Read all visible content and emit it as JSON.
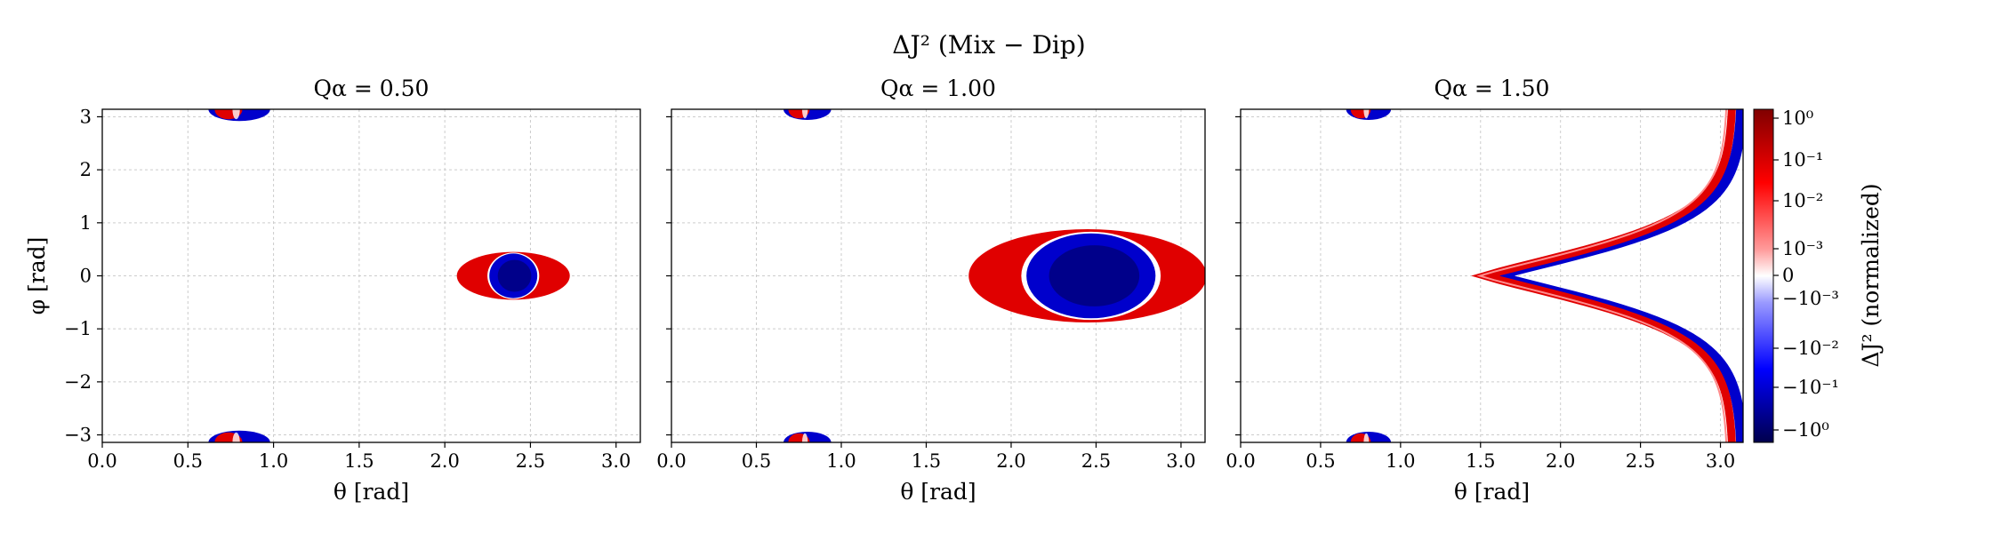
{
  "figure": {
    "suptitle": "ΔJ² (Mix − Dip)"
  },
  "chart_data": [
    {
      "type": "heatmap",
      "title": "Qα = 0.50",
      "xlabel": "θ [rad]",
      "ylabel": "φ [rad]",
      "xlim": [
        0.0,
        3.14159
      ],
      "ylim": [
        -3.14159,
        3.14159
      ],
      "xticks": [
        "0.0",
        "0.5",
        "1.0",
        "1.5",
        "2.0",
        "2.5",
        "3.0"
      ],
      "yticks": [
        "−3",
        "−2",
        "−1",
        "0",
        "1",
        "2",
        "3"
      ],
      "grid": true,
      "regions": [
        {
          "kind": "red-ring-blue-core",
          "theta_center": 2.4,
          "phi_center": 0.0,
          "theta_halfwidth": 0.33,
          "phi_halfwidth": 0.45,
          "core_theta_center": 2.4,
          "core_theta_halfwidth": 0.14,
          "core_phi_halfwidth": 0.42
        },
        {
          "kind": "edge-blob",
          "theta_center": 0.8,
          "phi_center": 3.14,
          "theta_halfwidth": 0.18,
          "phi_halfwidth": 0.22
        },
        {
          "kind": "edge-blob",
          "theta_center": 0.8,
          "phi_center": -3.14,
          "theta_halfwidth": 0.18,
          "phi_halfwidth": 0.22
        }
      ]
    },
    {
      "type": "heatmap",
      "title": "Qα = 1.00",
      "xlabel": "θ [rad]",
      "ylabel": "",
      "xlim": [
        0.0,
        3.14159
      ],
      "ylim": [
        -3.14159,
        3.14159
      ],
      "xticks": [
        "0.0",
        "0.5",
        "1.0",
        "1.5",
        "2.0",
        "2.5",
        "3.0"
      ],
      "yticks": [],
      "grid": true,
      "regions": [
        {
          "kind": "red-ring-blue-core",
          "theta_center": 2.45,
          "phi_center": 0.0,
          "theta_halfwidth": 0.7,
          "phi_halfwidth": 0.88,
          "core_theta_center": 2.47,
          "core_theta_halfwidth": 0.38,
          "core_phi_halfwidth": 0.8
        },
        {
          "kind": "edge-blob",
          "theta_center": 0.8,
          "phi_center": 3.14,
          "theta_halfwidth": 0.14,
          "phi_halfwidth": 0.2
        },
        {
          "kind": "edge-blob",
          "theta_center": 0.8,
          "phi_center": -3.14,
          "theta_halfwidth": 0.14,
          "phi_halfwidth": 0.2
        }
      ]
    },
    {
      "type": "heatmap",
      "title": "Qα = 1.50",
      "xlabel": "θ [rad]",
      "ylabel": "",
      "xlim": [
        0.0,
        3.14159
      ],
      "ylim": [
        -3.14159,
        3.14159
      ],
      "xticks": [
        "0.0",
        "0.5",
        "1.0",
        "1.5",
        "2.0",
        "2.5",
        "3.0"
      ],
      "yticks": [],
      "grid": true,
      "regions": [
        {
          "kind": "curve-band",
          "theta_min": 1.5,
          "theta_max": 3.05
        },
        {
          "kind": "edge-blob",
          "theta_center": 0.8,
          "phi_center": 3.14,
          "theta_halfwidth": 0.14,
          "phi_halfwidth": 0.2
        },
        {
          "kind": "edge-blob",
          "theta_center": 0.8,
          "phi_center": -3.14,
          "theta_halfwidth": 0.14,
          "phi_halfwidth": 0.2
        }
      ],
      "colorbar": {
        "label": "ΔJ² (normalized)",
        "scale": "symlog",
        "colormap": [
          "#00004c",
          "#0000ff",
          "#ffffff",
          "#ff0000",
          "#800000"
        ],
        "ticks": [
          "10⁰",
          "10⁻¹",
          "10⁻²",
          "10⁻³",
          "0",
          "−10⁻³",
          "−10⁻²",
          "−10⁻¹",
          "−10⁰"
        ]
      }
    }
  ],
  "colors": {
    "positive": "#e00000",
    "negative": "#0000cc",
    "deep_negative": "#00008a",
    "grid": "#cccccc"
  }
}
